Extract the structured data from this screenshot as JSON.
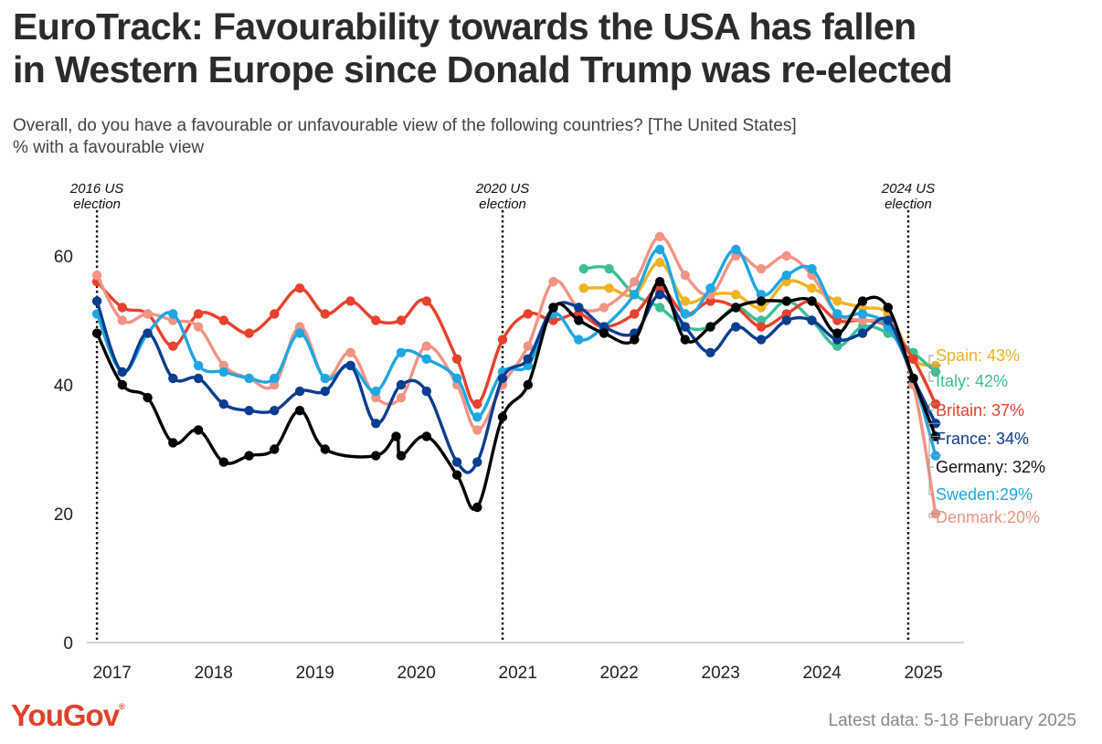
{
  "header": {
    "title_line1": "EuroTrack: Favourability towards the USA has fallen",
    "title_line2": "in Western Europe since Donald Trump was re-elected",
    "subtitle_line1": "Overall, do you have a favourable or unfavourable view of the following countries? [The United States]",
    "subtitle_line2": "% with a favourable view"
  },
  "footer": {
    "logo": "YouGov",
    "logo_mark": "®",
    "latest": "Latest data: 5-18 February 2025"
  },
  "chart_data": {
    "type": "line",
    "ylim": [
      0,
      60
    ],
    "yticks": [
      0,
      20,
      40,
      60
    ],
    "xlim": [
      2016.75,
      2025.4
    ],
    "xticks": [
      {
        "label": "2017",
        "x": 2017.0
      },
      {
        "label": "2018",
        "x": 2018.0
      },
      {
        "label": "2019",
        "x": 2019.0
      },
      {
        "label": "2020",
        "x": 2020.0
      },
      {
        "label": "2021",
        "x": 2021.0
      },
      {
        "label": "2022",
        "x": 2022.0
      },
      {
        "label": "2023",
        "x": 2023.0
      },
      {
        "label": "2024",
        "x": 2024.0
      },
      {
        "label": "2025",
        "x": 2025.0
      }
    ],
    "grid": false,
    "events": [
      {
        "x": 2016.85,
        "lines": [
          "2016 US",
          "election"
        ]
      },
      {
        "x": 2020.85,
        "lines": [
          "2020 US",
          "election"
        ]
      },
      {
        "x": 2024.85,
        "lines": [
          "2024 US",
          "election"
        ]
      }
    ],
    "series": [
      {
        "name": "Spain",
        "end_label": "Spain: 43%",
        "color": "#f0b323",
        "points": [
          [
            2021.65,
            55
          ],
          [
            2021.9,
            55
          ],
          [
            2022.15,
            54
          ],
          [
            2022.4,
            59
          ],
          [
            2022.65,
            53
          ],
          [
            2022.9,
            54
          ],
          [
            2023.15,
            54
          ],
          [
            2023.4,
            52
          ],
          [
            2023.65,
            56
          ],
          [
            2023.9,
            55
          ],
          [
            2024.15,
            53
          ],
          [
            2024.4,
            52
          ],
          [
            2024.65,
            51
          ],
          [
            2024.9,
            44
          ],
          [
            2025.12,
            43
          ]
        ]
      },
      {
        "name": "Italy",
        "end_label": "Italy: 42%",
        "color": "#3cbf95",
        "points": [
          [
            2021.65,
            58
          ],
          [
            2021.9,
            58
          ],
          [
            2022.15,
            54
          ],
          [
            2022.4,
            52
          ],
          [
            2022.65,
            49
          ],
          [
            2022.9,
            49
          ],
          [
            2023.15,
            52
          ],
          [
            2023.4,
            50
          ],
          [
            2023.65,
            53
          ],
          [
            2023.9,
            50
          ],
          [
            2024.15,
            46
          ],
          [
            2024.4,
            49
          ],
          [
            2024.65,
            48
          ],
          [
            2024.9,
            45
          ],
          [
            2025.12,
            42
          ]
        ]
      },
      {
        "name": "Britain",
        "end_label": "Britain: 37%",
        "color": "#e8412e",
        "points": [
          [
            2016.85,
            56
          ],
          [
            2017.1,
            52
          ],
          [
            2017.35,
            51
          ],
          [
            2017.6,
            46
          ],
          [
            2017.85,
            51
          ],
          [
            2018.1,
            50
          ],
          [
            2018.35,
            48
          ],
          [
            2018.6,
            51
          ],
          [
            2018.85,
            55
          ],
          [
            2019.1,
            51
          ],
          [
            2019.35,
            53
          ],
          [
            2019.6,
            50
          ],
          [
            2019.85,
            50
          ],
          [
            2020.1,
            53
          ],
          [
            2020.4,
            44
          ],
          [
            2020.6,
            37
          ],
          [
            2020.85,
            47
          ],
          [
            2021.1,
            51
          ],
          [
            2021.35,
            50
          ],
          [
            2021.6,
            51
          ],
          [
            2021.85,
            49
          ],
          [
            2022.15,
            51
          ],
          [
            2022.4,
            55
          ],
          [
            2022.65,
            51
          ],
          [
            2022.9,
            53
          ],
          [
            2023.15,
            52
          ],
          [
            2023.4,
            49
          ],
          [
            2023.65,
            51
          ],
          [
            2023.9,
            53
          ],
          [
            2024.15,
            50
          ],
          [
            2024.4,
            50
          ],
          [
            2024.65,
            49
          ],
          [
            2024.9,
            44
          ],
          [
            2025.12,
            37
          ]
        ]
      },
      {
        "name": "Denmark",
        "end_label": "Denmark:20%",
        "color": "#f29485",
        "points": [
          [
            2016.85,
            57
          ],
          [
            2017.1,
            50
          ],
          [
            2017.35,
            51
          ],
          [
            2017.6,
            50
          ],
          [
            2017.85,
            49
          ],
          [
            2018.1,
            43
          ],
          [
            2018.35,
            41
          ],
          [
            2018.6,
            40
          ],
          [
            2018.85,
            49
          ],
          [
            2019.1,
            41
          ],
          [
            2019.35,
            45
          ],
          [
            2019.6,
            38
          ],
          [
            2019.85,
            38
          ],
          [
            2020.1,
            46
          ],
          [
            2020.4,
            40
          ],
          [
            2020.6,
            33
          ],
          [
            2020.85,
            40
          ],
          [
            2021.1,
            46
          ],
          [
            2021.35,
            56
          ],
          [
            2021.6,
            52
          ],
          [
            2021.85,
            52
          ],
          [
            2022.15,
            56
          ],
          [
            2022.4,
            63
          ],
          [
            2022.65,
            57
          ],
          [
            2022.9,
            54
          ],
          [
            2023.15,
            60
          ],
          [
            2023.4,
            58
          ],
          [
            2023.65,
            60
          ],
          [
            2023.9,
            57
          ],
          [
            2024.15,
            51
          ],
          [
            2024.4,
            50
          ],
          [
            2024.65,
            49
          ],
          [
            2024.9,
            40
          ],
          [
            2025.12,
            20
          ]
        ]
      },
      {
        "name": "Sweden",
        "end_label": "Sweden:29%",
        "color": "#1ea7e1",
        "points": [
          [
            2016.85,
            51
          ],
          [
            2017.1,
            42
          ],
          [
            2017.35,
            48
          ],
          [
            2017.6,
            51
          ],
          [
            2017.85,
            43
          ],
          [
            2018.1,
            42
          ],
          [
            2018.35,
            41
          ],
          [
            2018.6,
            41
          ],
          [
            2018.85,
            48
          ],
          [
            2019.1,
            41
          ],
          [
            2019.35,
            43
          ],
          [
            2019.6,
            39
          ],
          [
            2019.85,
            45
          ],
          [
            2020.1,
            44
          ],
          [
            2020.4,
            41
          ],
          [
            2020.6,
            35
          ],
          [
            2020.85,
            42
          ],
          [
            2021.1,
            43
          ],
          [
            2021.35,
            51
          ],
          [
            2021.6,
            47
          ],
          [
            2021.85,
            49
          ],
          [
            2022.15,
            54
          ],
          [
            2022.4,
            61
          ],
          [
            2022.65,
            51
          ],
          [
            2022.9,
            55
          ],
          [
            2023.15,
            61
          ],
          [
            2023.4,
            54
          ],
          [
            2023.65,
            57
          ],
          [
            2023.9,
            58
          ],
          [
            2024.15,
            51
          ],
          [
            2024.4,
            51
          ],
          [
            2024.65,
            49
          ],
          [
            2024.9,
            41
          ],
          [
            2025.12,
            29
          ]
        ]
      },
      {
        "name": "France",
        "end_label": "France: 34%",
        "color": "#0a3d8f",
        "points": [
          [
            2016.85,
            53
          ],
          [
            2017.1,
            42
          ],
          [
            2017.35,
            48
          ],
          [
            2017.6,
            41
          ],
          [
            2017.85,
            41
          ],
          [
            2018.1,
            37
          ],
          [
            2018.35,
            36
          ],
          [
            2018.6,
            36
          ],
          [
            2018.85,
            39
          ],
          [
            2019.1,
            39
          ],
          [
            2019.35,
            43
          ],
          [
            2019.6,
            34
          ],
          [
            2019.85,
            40
          ],
          [
            2020.1,
            39
          ],
          [
            2020.4,
            28
          ],
          [
            2020.6,
            28
          ],
          [
            2020.85,
            41
          ],
          [
            2021.1,
            44
          ],
          [
            2021.35,
            52
          ],
          [
            2021.6,
            52
          ],
          [
            2021.85,
            49
          ],
          [
            2022.15,
            48
          ],
          [
            2022.4,
            54
          ],
          [
            2022.65,
            49
          ],
          [
            2022.9,
            45
          ],
          [
            2023.15,
            49
          ],
          [
            2023.4,
            47
          ],
          [
            2023.65,
            50
          ],
          [
            2023.9,
            50
          ],
          [
            2024.15,
            47
          ],
          [
            2024.4,
            48
          ],
          [
            2024.65,
            50
          ],
          [
            2024.9,
            41
          ],
          [
            2025.12,
            34
          ]
        ]
      },
      {
        "name": "Germany",
        "end_label": "Germany: 32%",
        "color": "#000000",
        "points": [
          [
            2016.85,
            48
          ],
          [
            2017.1,
            40
          ],
          [
            2017.35,
            38
          ],
          [
            2017.6,
            31
          ],
          [
            2017.85,
            33
          ],
          [
            2018.1,
            28
          ],
          [
            2018.35,
            29
          ],
          [
            2018.6,
            30
          ],
          [
            2018.85,
            36
          ],
          [
            2019.1,
            30
          ],
          [
            2019.6,
            29
          ],
          [
            2019.8,
            32
          ],
          [
            2019.85,
            29
          ],
          [
            2020.1,
            32
          ],
          [
            2020.4,
            26
          ],
          [
            2020.6,
            21
          ],
          [
            2020.85,
            35
          ],
          [
            2021.1,
            40
          ],
          [
            2021.35,
            52
          ],
          [
            2021.6,
            50
          ],
          [
            2021.85,
            48
          ],
          [
            2022.15,
            47
          ],
          [
            2022.4,
            56
          ],
          [
            2022.65,
            47
          ],
          [
            2022.9,
            49
          ],
          [
            2023.15,
            52
          ],
          [
            2023.4,
            53
          ],
          [
            2023.65,
            53
          ],
          [
            2023.9,
            53
          ],
          [
            2024.15,
            48
          ],
          [
            2024.4,
            53
          ],
          [
            2024.65,
            52
          ],
          [
            2024.9,
            41
          ],
          [
            2025.12,
            32
          ]
        ]
      }
    ]
  }
}
